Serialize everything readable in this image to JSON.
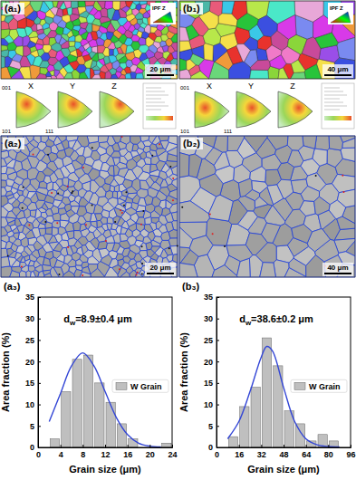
{
  "maps": [
    {
      "label": "(a₁)",
      "key": "IPF Z",
      "scale_bar": "20 μm"
    },
    {
      "label": "(b₁)",
      "key": "IPF Z",
      "scale_bar": "40 μm"
    },
    {
      "label": "(a₂)",
      "scale_bar": "20 μm"
    },
    {
      "label": "(b₂)",
      "scale_bar": "40 μm"
    }
  ],
  "pole_figures": {
    "axes": [
      "X",
      "Y",
      "Z"
    ],
    "corners": [
      "001",
      "101",
      "111"
    ]
  },
  "chart_data": [
    {
      "type": "histogram",
      "title": "(a₃)",
      "annotation": {
        "text": "d",
        "subscript": "w",
        "rest": "=8.9±0.4 μm"
      },
      "x_label": "Grain size (μm)",
      "y_label": "Area fraction (%)",
      "bins": [
        2,
        4,
        6,
        8,
        10,
        12,
        14,
        16,
        18,
        20,
        22,
        24
      ],
      "series": [
        {
          "name": "W Grain",
          "type": "bar",
          "color": "#bfbfbf",
          "values": [
            2,
            13,
            20.5,
            21.5,
            15,
            10.5,
            5.5,
            2,
            0,
            0,
            1
          ]
        },
        {
          "type": "line",
          "color": "#3346d6",
          "x": [
            2,
            4,
            6,
            8,
            10,
            12,
            14,
            16,
            18,
            20,
            22
          ],
          "values": [
            6,
            12.5,
            19,
            22,
            19,
            13,
            7,
            3,
            1,
            0.3,
            0.1
          ]
        }
      ],
      "xlim": [
        0,
        24
      ],
      "xticks": [
        0,
        4,
        8,
        12,
        16,
        20,
        24
      ],
      "ylim": [
        0,
        35
      ],
      "yticks": [
        0,
        5,
        10,
        15,
        20,
        25,
        30,
        35
      ],
      "legend": "right"
    },
    {
      "type": "histogram",
      "title": "(b₃)",
      "annotation": {
        "text": "d",
        "subscript": "w",
        "rest": "=38.6±0.2 μm"
      },
      "x_label": "Grain size (μm)",
      "y_label": "Area fraction (%)",
      "bins": [
        8,
        16,
        24,
        32,
        40,
        48,
        56,
        64,
        72,
        80,
        88
      ],
      "series": [
        {
          "name": "W Grain",
          "type": "bar",
          "color": "#bfbfbf",
          "values": [
            2.5,
            9.5,
            14,
            25.5,
            19,
            8.5,
            5.5,
            1.5,
            3,
            1.5
          ]
        },
        {
          "type": "line",
          "color": "#3346d6",
          "x": [
            8,
            16,
            24,
            32,
            36,
            40,
            48,
            56,
            64,
            72,
            80,
            88
          ],
          "values": [
            2,
            6,
            13,
            21,
            23.5,
            22.5,
            14,
            6,
            2,
            0.6,
            0.2,
            0.1
          ]
        }
      ],
      "xlim": [
        0,
        96
      ],
      "xticks": [
        0,
        16,
        32,
        48,
        64,
        80,
        96
      ],
      "ylim": [
        0,
        35
      ],
      "yticks": [
        0,
        5,
        10,
        15,
        20,
        25,
        30,
        35
      ],
      "legend": "right"
    }
  ]
}
